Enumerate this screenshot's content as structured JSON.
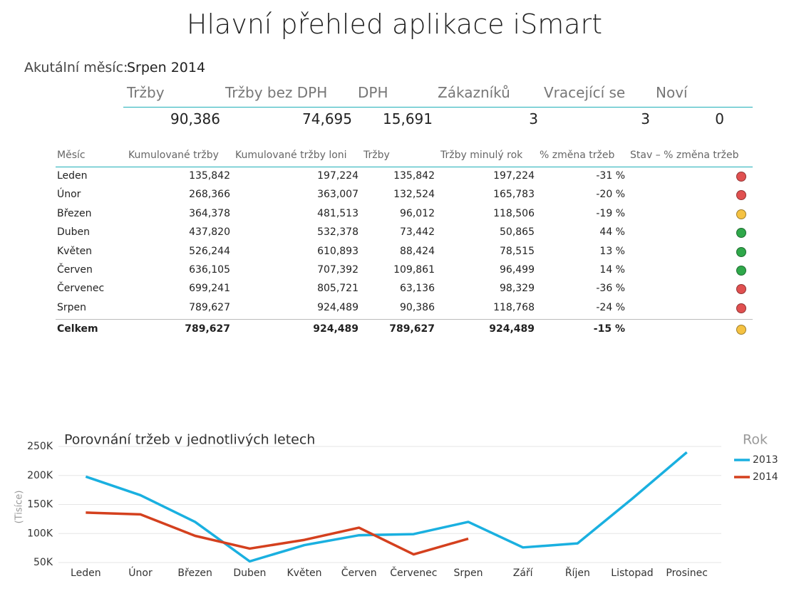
{
  "header": {
    "title": "Hlavní přehled aplikace iSmart",
    "month_label": "Akutální měsíc:",
    "month_value": "Srpen 2014"
  },
  "kpi": {
    "headers": [
      "Tržby",
      "Tržby bez DPH",
      "DPH",
      "Zákazníků",
      "Vracející se",
      "Noví"
    ],
    "values": [
      "90,386",
      "74,695",
      "15,691",
      "3",
      "3",
      "0"
    ]
  },
  "table": {
    "columns": [
      "Měsíc",
      "Kumulované tržby",
      "Kumulované tržby loni",
      "Tržby",
      "Tržby minulý rok",
      "% změna tržeb",
      "Stav – % změna tržeb"
    ],
    "rows": [
      [
        "Leden",
        "135,842",
        "197,224",
        "135,842",
        "197,224",
        "-31 %"
      ],
      [
        "Únor",
        "268,366",
        "363,007",
        "132,524",
        "165,783",
        "-20 %"
      ],
      [
        "Březen",
        "364,378",
        "481,513",
        "96,012",
        "118,506",
        "-19 %"
      ],
      [
        "Duben",
        "437,820",
        "532,378",
        "73,442",
        "50,865",
        "44 %"
      ],
      [
        "Květen",
        "526,244",
        "610,893",
        "88,424",
        "78,515",
        "13 %"
      ],
      [
        "Červen",
        "636,105",
        "707,392",
        "109,861",
        "96,499",
        "14 %"
      ],
      [
        "Červenec",
        "699,241",
        "805,721",
        "63,136",
        "98,329",
        "-36 %"
      ],
      [
        "Srpen",
        "789,627",
        "924,489",
        "90,386",
        "118,768",
        "-24 %"
      ]
    ],
    "status": [
      "#e05050",
      "#e05050",
      "#f5c242",
      "#2fa84a",
      "#2fa84a",
      "#2fa84a",
      "#e05050",
      "#e05050"
    ],
    "total": [
      "Celkem",
      "789,627",
      "924,489",
      "789,627",
      "924,489",
      "-15 %"
    ],
    "total_status": "#f5c242"
  },
  "chart_data": {
    "type": "line",
    "title": "Porovnání tržeb v jednotlivých letech",
    "y_label": "(Tisíce)",
    "legend_title": "Rok",
    "categories": [
      "Leden",
      "Únor",
      "Březen",
      "Duben",
      "Květen",
      "Červen",
      "Červenec",
      "Srpen",
      "Září",
      "Říjen",
      "Listopad",
      "Prosinec"
    ],
    "series": [
      {
        "name": "2013",
        "color": "#1ab0e0",
        "values": [
          198000,
          166000,
          120000,
          52000,
          80000,
          97000,
          99000,
          120000,
          76000,
          83000,
          160000,
          240000
        ]
      },
      {
        "name": "2014",
        "color": "#d4401e",
        "values": [
          136000,
          133000,
          96000,
          74000,
          89000,
          110000,
          64000,
          91000,
          null,
          null,
          null,
          null
        ]
      }
    ],
    "ylim": [
      50000,
      250000
    ],
    "yticks": [
      {
        "value": 50000,
        "label": "50K"
      },
      {
        "value": 100000,
        "label": "100K"
      },
      {
        "value": 150000,
        "label": "150K"
      },
      {
        "value": 200000,
        "label": "200K"
      },
      {
        "value": 250000,
        "label": "250K"
      }
    ],
    "grid": true
  }
}
